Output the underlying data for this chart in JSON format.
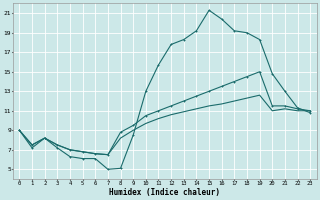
{
  "xlabel": "Humidex (Indice chaleur)",
  "bg_color": "#cce8e8",
  "grid_color": "#ffffff",
  "line_color": "#1a6b6b",
  "xlim": [
    -0.5,
    23.5
  ],
  "ylim": [
    4,
    22
  ],
  "xticks": [
    0,
    1,
    2,
    3,
    4,
    5,
    6,
    7,
    8,
    9,
    10,
    11,
    12,
    13,
    14,
    15,
    16,
    17,
    18,
    19,
    20,
    21,
    22,
    23
  ],
  "yticks": [
    5,
    7,
    9,
    11,
    13,
    15,
    17,
    19,
    21
  ],
  "line1_x": [
    0,
    1,
    2,
    3,
    4,
    5,
    6,
    7,
    8,
    9,
    10,
    11,
    12,
    13,
    14,
    15,
    16,
    17,
    18,
    19,
    20,
    21,
    22,
    23
  ],
  "line1_y": [
    9.0,
    7.2,
    8.2,
    7.2,
    6.3,
    6.1,
    6.1,
    5.0,
    5.1,
    8.5,
    13.0,
    15.7,
    17.8,
    18.3,
    19.2,
    21.3,
    20.4,
    19.2,
    19.0,
    18.3,
    14.8,
    13.0,
    11.3,
    10.8
  ],
  "line2_x": [
    0,
    1,
    2,
    3,
    4,
    5,
    6,
    7,
    8,
    9,
    10,
    11,
    12,
    13,
    14,
    15,
    16,
    17,
    18,
    19,
    20,
    21,
    22,
    23
  ],
  "line2_y": [
    9.0,
    7.5,
    8.2,
    7.5,
    7.0,
    6.8,
    6.6,
    6.5,
    8.8,
    9.5,
    10.5,
    11.0,
    11.5,
    12.0,
    12.5,
    13.0,
    13.5,
    14.0,
    14.5,
    15.0,
    11.5,
    11.5,
    11.2,
    11.0
  ],
  "line3_x": [
    0,
    1,
    2,
    3,
    4,
    5,
    6,
    7,
    8,
    9,
    10,
    11,
    12,
    13,
    14,
    15,
    16,
    17,
    18,
    19,
    20,
    21,
    22,
    23
  ],
  "line3_y": [
    9.0,
    7.5,
    8.2,
    7.5,
    7.0,
    6.8,
    6.6,
    6.5,
    8.2,
    9.0,
    9.7,
    10.2,
    10.6,
    10.9,
    11.2,
    11.5,
    11.7,
    12.0,
    12.3,
    12.6,
    11.0,
    11.2,
    11.0,
    11.0
  ]
}
